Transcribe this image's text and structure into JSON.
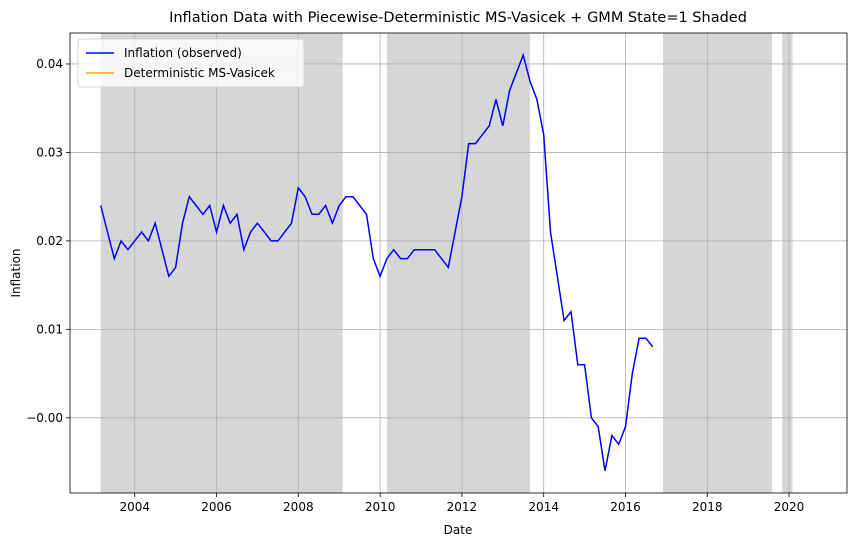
{
  "chart_data": {
    "type": "line",
    "title": "Inflation Data with Piecewise-Deterministic MS-Vasicek + GMM State=1 Shaded",
    "xlabel": "Date",
    "ylabel": "Inflation",
    "xlim": [
      "2002-06-01",
      "2021-06-01"
    ],
    "ylim": [
      -0.0085,
      0.0435
    ],
    "x_ticks": [
      "2004",
      "2006",
      "2008",
      "2010",
      "2012",
      "2014",
      "2016",
      "2018",
      "2020"
    ],
    "y_ticks": [
      "−0.00",
      "0.01",
      "0.02",
      "0.03",
      "0.04"
    ],
    "y_tick_values": [
      0,
      0.01,
      0.02,
      0.03,
      0.04
    ],
    "grid": true,
    "legend_position": "top-left",
    "legend": [
      "Inflation (observed)",
      "Deterministic MS-Vasicek"
    ],
    "colors": {
      "observed": "#0000ff",
      "model": "#ffa500",
      "shade": "#d6d6d6",
      "grid": "#b0b0b0"
    },
    "shaded_state1_regions": [
      [
        "2003-03-01",
        "2009-02-01"
      ],
      [
        "2010-03-01",
        "2013-09-01"
      ],
      [
        "2016-12-01",
        "2019-08-01"
      ],
      [
        "2019-11-01",
        "2020-02-01"
      ]
    ],
    "series": [
      {
        "name": "Inflation (observed)",
        "points": [
          [
            "2003-03-01",
            0.024
          ],
          [
            "2003-05-01",
            0.021
          ],
          [
            "2003-07-01",
            0.018
          ],
          [
            "2003-09-01",
            0.02
          ],
          [
            "2003-11-01",
            0.019
          ],
          [
            "2004-01-01",
            0.02
          ],
          [
            "2004-03-01",
            0.021
          ],
          [
            "2004-05-01",
            0.02
          ],
          [
            "2004-07-01",
            0.022
          ],
          [
            "2004-09-01",
            0.019
          ],
          [
            "2004-11-01",
            0.016
          ],
          [
            "2005-01-01",
            0.017
          ],
          [
            "2005-03-01",
            0.022
          ],
          [
            "2005-05-01",
            0.025
          ],
          [
            "2005-07-01",
            0.024
          ],
          [
            "2005-09-01",
            0.023
          ],
          [
            "2005-11-01",
            0.024
          ],
          [
            "2006-01-01",
            0.021
          ],
          [
            "2006-03-01",
            0.024
          ],
          [
            "2006-05-01",
            0.022
          ],
          [
            "2006-07-01",
            0.023
          ],
          [
            "2006-09-01",
            0.019
          ],
          [
            "2006-11-01",
            0.021
          ],
          [
            "2007-01-01",
            0.022
          ],
          [
            "2007-03-01",
            0.021
          ],
          [
            "2007-05-01",
            0.02
          ],
          [
            "2007-07-01",
            0.02
          ],
          [
            "2007-09-01",
            0.021
          ],
          [
            "2007-11-01",
            0.022
          ],
          [
            "2008-01-01",
            0.026
          ],
          [
            "2008-03-01",
            0.025
          ],
          [
            "2008-05-01",
            0.023
          ],
          [
            "2008-07-01",
            0.023
          ],
          [
            "2008-09-01",
            0.024
          ],
          [
            "2008-11-01",
            0.022
          ],
          [
            "2009-01-01",
            0.024
          ],
          [
            "2009-03-01",
            0.025
          ],
          [
            "2009-05-01",
            0.025
          ],
          [
            "2009-07-01",
            0.024
          ],
          [
            "2009-09-01",
            0.023
          ],
          [
            "2009-11-01",
            0.018
          ],
          [
            "2010-01-01",
            0.016
          ],
          [
            "2010-03-01",
            0.018
          ],
          [
            "2010-05-01",
            0.019
          ],
          [
            "2010-07-01",
            0.018
          ],
          [
            "2010-09-01",
            0.018
          ],
          [
            "2010-11-01",
            0.019
          ],
          [
            "2011-01-01",
            0.019
          ],
          [
            "2011-03-01",
            0.019
          ],
          [
            "2011-05-01",
            0.019
          ],
          [
            "2011-07-01",
            0.018
          ],
          [
            "2011-09-01",
            0.017
          ],
          [
            "2011-11-01",
            0.021
          ],
          [
            "2012-01-01",
            0.025
          ],
          [
            "2012-03-01",
            0.031
          ],
          [
            "2012-05-01",
            0.031
          ],
          [
            "2012-07-01",
            0.032
          ],
          [
            "2012-09-01",
            0.033
          ],
          [
            "2012-11-01",
            0.036
          ],
          [
            "2013-01-01",
            0.033
          ],
          [
            "2013-03-01",
            0.037
          ],
          [
            "2013-05-01",
            0.039
          ],
          [
            "2013-07-01",
            0.041
          ],
          [
            "2013-09-01",
            0.038
          ],
          [
            "2013-11-01",
            0.036
          ],
          [
            "2014-01-01",
            0.032
          ],
          [
            "2014-03-01",
            0.021
          ],
          [
            "2014-05-01",
            0.016
          ],
          [
            "2014-07-01",
            0.011
          ],
          [
            "2014-09-01",
            0.012
          ],
          [
            "2014-11-01",
            0.006
          ],
          [
            "2015-01-01",
            0.006
          ],
          [
            "2015-03-01",
            0.0
          ],
          [
            "2015-05-01",
            -0.001
          ],
          [
            "2015-07-01",
            -0.006
          ],
          [
            "2015-09-01",
            -0.002
          ],
          [
            "2015-11-01",
            -0.003
          ],
          [
            "2016-01-01",
            -0.001
          ],
          [
            "2016-03-01",
            0.005
          ],
          [
            "2016-05-01",
            0.009
          ],
          [
            "2016-07-01",
            0.009
          ],
          [
            "2016-09-01",
            0.008
          ]
        ]
      },
      {
        "name": "Deterministic MS-Vasicek",
        "points": []
      }
    ]
  }
}
